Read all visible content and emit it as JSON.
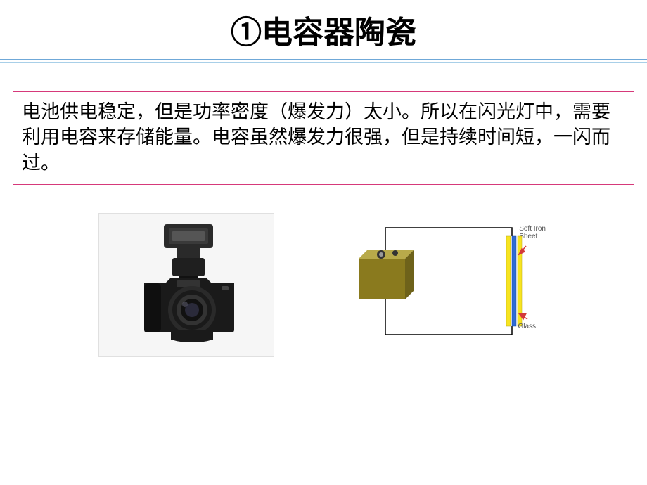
{
  "title": {
    "text": "①电容器陶瓷",
    "fontsize": 44,
    "color": "#000000"
  },
  "divider": {
    "top_color": "#6fa8d8",
    "bottom_color": "#a8cfe8"
  },
  "body_text": {
    "text": "电池供电稳定，但是功率密度（爆发力）太小。所以在闪光灯中，需要利用电容来存储能量。电容虽然爆发力很强，但是持续时间短，一闪而过。",
    "fontsize": 27,
    "color": "#000000",
    "border_color": "#d6397a",
    "background": "#ffffff"
  },
  "camera_image": {
    "background": "#f6f6f6",
    "body_color": "#1a1a1a",
    "flash_color": "#2a2a2a",
    "lens_color": "#333333",
    "highlight_color": "#666666"
  },
  "diagram": {
    "wire_color": "#000000",
    "battery_color": "#8a7a1e",
    "battery_highlight": "#b8aa4a",
    "plate_yellow": "#f7e420",
    "plate_blue": "#2e6bd6",
    "arrow_color": "#d43a3a",
    "label_color": "#555555",
    "label_fontsize": 10,
    "label_soft_iron": "Soft Iron Sheet",
    "label_glass": "Glass"
  }
}
